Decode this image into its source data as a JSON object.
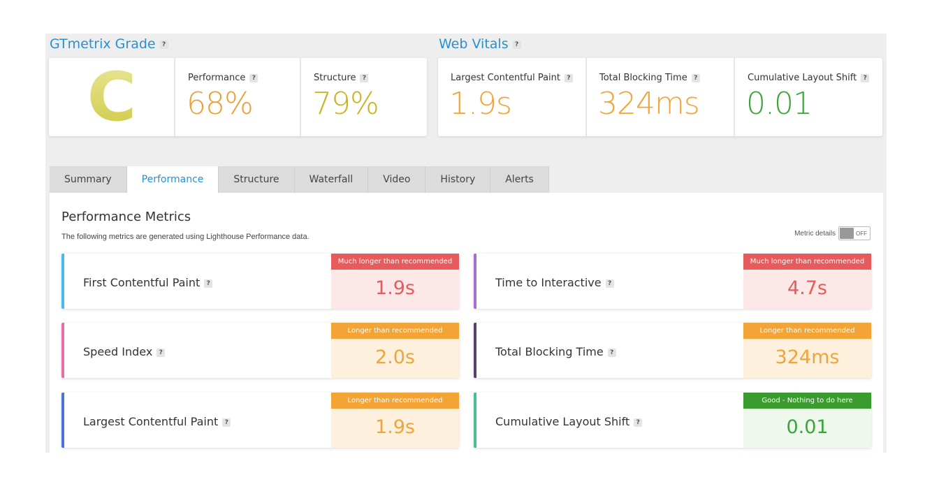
{
  "grade_section": {
    "title": "GTmetrix Grade",
    "help": "?",
    "grade": "C",
    "performance": {
      "label": "Performance",
      "value": "68%",
      "color": "#e8a237"
    },
    "structure": {
      "label": "Structure",
      "value": "79%",
      "color": "#c9b21e"
    }
  },
  "vitals_section": {
    "title": "Web Vitals",
    "help": "?",
    "lcp": {
      "label": "Largest Contentful Paint",
      "value": "1.9s",
      "color": "#f0a43a"
    },
    "tbt": {
      "label": "Total Blocking Time",
      "value": "324ms",
      "color": "#f0a43a"
    },
    "cls": {
      "label": "Cumulative Layout Shift",
      "value": "0.01",
      "color": "#3aa53a"
    }
  },
  "tabs": [
    {
      "label": "Summary"
    },
    {
      "label": "Performance",
      "active": true
    },
    {
      "label": "Structure"
    },
    {
      "label": "Waterfall"
    },
    {
      "label": "Video"
    },
    {
      "label": "History"
    },
    {
      "label": "Alerts"
    }
  ],
  "panel": {
    "title": "Performance Metrics",
    "subtitle": "The following metrics are generated using Lighthouse Performance data.",
    "toggle_label": "Metric details",
    "toggle_state": "OFF"
  },
  "metrics": [
    {
      "label": "First Contentful Paint",
      "badge": "Much longer than recommended",
      "value": "1.9s",
      "status": "bad",
      "accent": "#4db8ef"
    },
    {
      "label": "Time to Interactive",
      "badge": "Much longer than recommended",
      "value": "4.7s",
      "status": "bad",
      "accent": "#a76ed1"
    },
    {
      "label": "Speed Index",
      "badge": "Longer than recommended",
      "value": "2.0s",
      "status": "warn",
      "accent": "#e76ea8"
    },
    {
      "label": "Total Blocking Time",
      "badge": "Longer than recommended",
      "value": "324ms",
      "status": "warn",
      "accent": "#5b3e74"
    },
    {
      "label": "Largest Contentful Paint",
      "badge": "Longer than recommended",
      "value": "1.9s",
      "status": "warn",
      "accent": "#4a74d6"
    },
    {
      "label": "Cumulative Layout Shift",
      "badge": "Good - Nothing to do here",
      "value": "0.01",
      "status": "good",
      "accent": "#4bbf8e"
    }
  ],
  "status_colors": {
    "bad": {
      "badge": "#e65b5b",
      "bg": "#fde8e8",
      "text": "#e65b5b"
    },
    "warn": {
      "badge": "#f2a436",
      "bg": "#fdf0dc",
      "text": "#f0a43a"
    },
    "good": {
      "badge": "#3a9c2e",
      "bg": "#eef8ec",
      "text": "#3aa53a"
    }
  }
}
